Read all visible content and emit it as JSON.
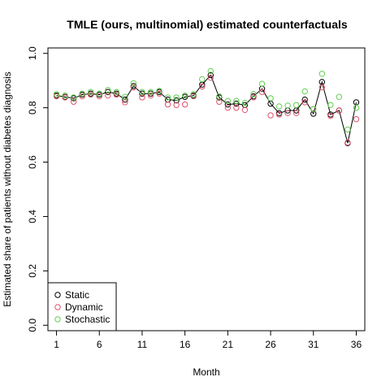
{
  "chart_data": {
    "type": "scatter",
    "title": "TMLE (ours, multinomial) estimated counterfactuals",
    "xlabel": "Month",
    "ylabel": "Estimated share of patients without diabetes diagnosis",
    "xlim": [
      0,
      37
    ],
    "ylim": [
      -0.02,
      1.02
    ],
    "xticks": [
      1,
      6,
      11,
      16,
      21,
      26,
      31,
      36
    ],
    "yticks": [
      0.0,
      0.2,
      0.4,
      0.6,
      0.8,
      1.0
    ],
    "ytick_labels": [
      "0.0",
      "0.2",
      "0.4",
      "0.6",
      "0.8",
      "1.0"
    ],
    "grid": false,
    "legend_position": "bottom-left",
    "x": [
      1,
      2,
      3,
      4,
      5,
      6,
      7,
      8,
      9,
      10,
      11,
      12,
      13,
      14,
      15,
      16,
      17,
      18,
      19,
      20,
      21,
      22,
      23,
      24,
      25,
      26,
      27,
      28,
      29,
      30,
      31,
      32,
      33,
      34,
      35,
      36
    ],
    "series": [
      {
        "name": "Static",
        "color": "#000000",
        "values": [
          0.845,
          0.84,
          0.835,
          0.848,
          0.852,
          0.848,
          0.858,
          0.852,
          0.83,
          0.88,
          0.852,
          0.852,
          0.858,
          0.83,
          0.827,
          0.84,
          0.845,
          0.885,
          0.92,
          0.838,
          0.812,
          0.815,
          0.81,
          0.842,
          0.87,
          0.815,
          0.78,
          0.79,
          0.79,
          0.83,
          0.778,
          0.895,
          0.775,
          0.79,
          0.67,
          0.82
        ]
      },
      {
        "name": "Dynamic",
        "color": "#DF536B",
        "values": [
          0.842,
          0.838,
          0.822,
          0.842,
          0.848,
          0.842,
          0.845,
          0.848,
          0.82,
          0.875,
          0.838,
          0.845,
          0.852,
          0.812,
          0.81,
          0.812,
          0.842,
          0.878,
          0.91,
          0.822,
          0.8,
          0.8,
          0.792,
          0.838,
          0.858,
          0.772,
          0.775,
          0.78,
          0.78,
          0.82,
          0.795,
          0.875,
          0.77,
          0.79,
          0.672,
          0.758
        ]
      },
      {
        "name": "Stochastic",
        "color": "#61D04F",
        "values": [
          0.85,
          0.845,
          0.838,
          0.852,
          0.858,
          0.852,
          0.865,
          0.858,
          0.84,
          0.89,
          0.858,
          0.858,
          0.862,
          0.838,
          0.838,
          0.845,
          0.85,
          0.905,
          0.935,
          0.842,
          0.825,
          0.825,
          0.818,
          0.85,
          0.888,
          0.835,
          0.805,
          0.808,
          0.81,
          0.86,
          0.795,
          0.925,
          0.81,
          0.84,
          0.72,
          0.8
        ]
      }
    ]
  }
}
